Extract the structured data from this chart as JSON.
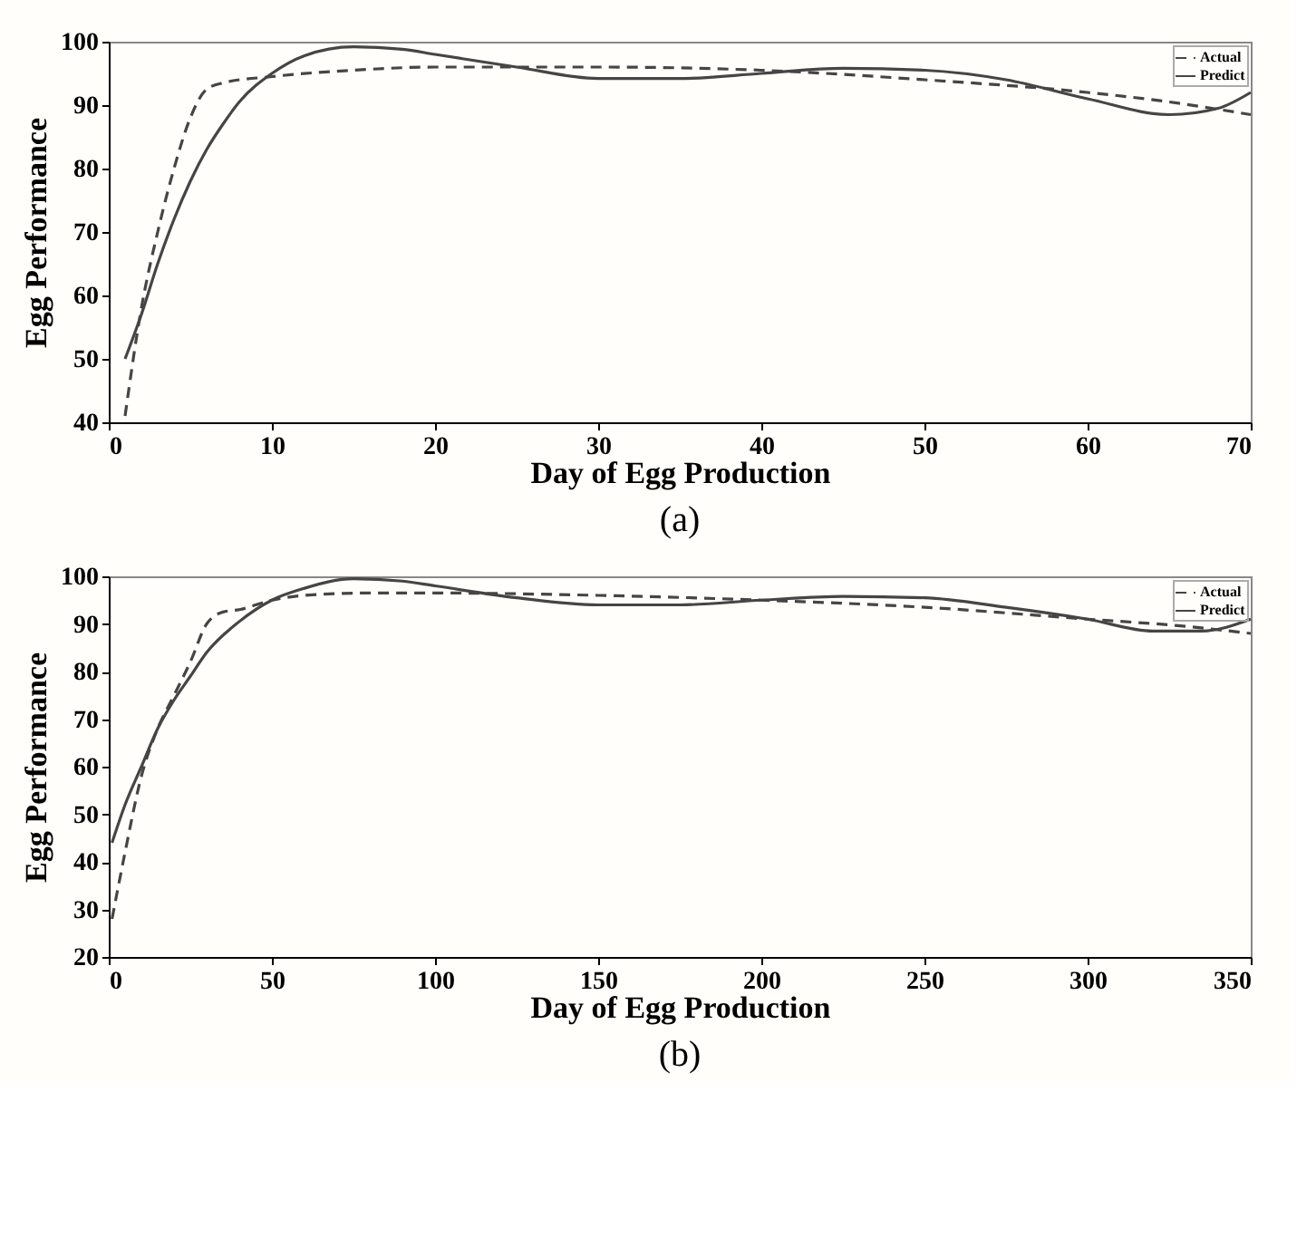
{
  "chart_data": [
    {
      "type": "line",
      "xlabel": "Day of Egg Production",
      "ylabel": "Egg Performance",
      "annotations": [
        "(a)"
      ],
      "xlim": [
        0,
        70
      ],
      "xticks": [
        0,
        10,
        20,
        30,
        40,
        50,
        60,
        70
      ],
      "ylim": [
        40,
        100
      ],
      "yticks": [
        40,
        50,
        60,
        70,
        80,
        90,
        100
      ],
      "grid": false,
      "legend": "top right",
      "series": [
        {
          "name": "Actual",
          "color": "#454545",
          "line_style": "dashed",
          "x": [
            1,
            2,
            3,
            4,
            5,
            6,
            7,
            10,
            15,
            20,
            30,
            40,
            50,
            60,
            65,
            70
          ],
          "values": [
            41,
            58,
            70,
            80,
            88,
            92.5,
            93.5,
            94.5,
            95.5,
            96,
            96,
            95.5,
            94,
            92,
            90.5,
            88.5
          ]
        },
        {
          "name": "Predict",
          "color": "#454545",
          "line_style": "solid",
          "x": [
            1,
            2,
            3,
            4,
            5,
            6,
            7,
            8,
            10,
            12,
            15,
            18,
            20,
            25,
            30,
            35,
            40,
            45,
            50,
            55,
            60,
            65,
            68,
            70
          ],
          "values": [
            50,
            57,
            65,
            72,
            78,
            83,
            87,
            90.5,
            95,
            97.8,
            99.2,
            98.8,
            98,
            96,
            94.2,
            94.2,
            95,
            95.8,
            95.5,
            94,
            91,
            88.5,
            89.5,
            92
          ]
        }
      ]
    },
    {
      "type": "line",
      "xlabel": "Day of Egg Production",
      "ylabel": "Egg Performance",
      "annotations": [
        "(b)"
      ],
      "xlim": [
        0,
        350
      ],
      "xticks": [
        0,
        50,
        100,
        150,
        200,
        250,
        300,
        350
      ],
      "ylim": [
        20,
        100
      ],
      "yticks": [
        20,
        30,
        40,
        50,
        60,
        70,
        80,
        90,
        100
      ],
      "grid": false,
      "legend": "top right",
      "series": [
        {
          "name": "Actual",
          "color": "#454545",
          "line_style": "dashed",
          "x": [
            1,
            5,
            10,
            15,
            20,
            25,
            30,
            35,
            40,
            50,
            60,
            80,
            100,
            150,
            200,
            250,
            300,
            330,
            350
          ],
          "values": [
            28,
            42,
            58,
            68,
            75,
            82,
            90,
            92.5,
            93,
            95,
            96,
            96.5,
            96.5,
            96,
            95,
            93.5,
            91,
            89.5,
            88
          ]
        },
        {
          "name": "Predict",
          "color": "#454545",
          "line_style": "solid",
          "x": [
            1,
            5,
            10,
            15,
            20,
            25,
            30,
            40,
            50,
            60,
            75,
            90,
            100,
            125,
            150,
            175,
            200,
            225,
            250,
            275,
            300,
            320,
            335,
            350
          ],
          "values": [
            44,
            52,
            60,
            68,
            74,
            79,
            84,
            90.5,
            95,
            97.5,
            99.5,
            99,
            98,
            95.5,
            94,
            94,
            95,
            95.8,
            95.5,
            93.5,
            91,
            88.5,
            88.5,
            91
          ]
        }
      ]
    }
  ]
}
